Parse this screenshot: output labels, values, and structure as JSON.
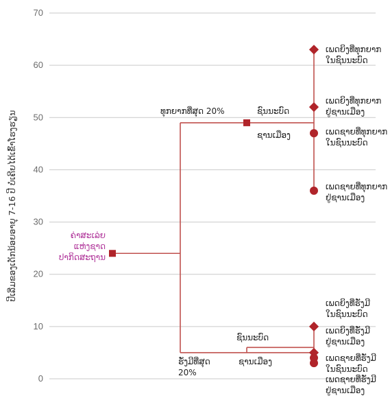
{
  "chart_data": {
    "type": "scatter",
    "title": "",
    "ylabel": "ປີເລີ່ມຂອງເດັກນ້ອຍອາຍຸ 7-16 ປີ ບໍ່ເຄີຍໄດ້ເຂົ້າໂຮງຮຽນ",
    "ylim": [
      0,
      70
    ],
    "yticks": [
      0,
      10,
      20,
      30,
      40,
      50,
      60,
      70
    ],
    "grid": true,
    "colors": {
      "line": "#c0504d",
      "marker": "#b0242a",
      "accent": "#b0359a",
      "grid": "#c9c9c9"
    },
    "root": {
      "label": [
        "ຄ່າສະເລ່ຍ",
        "ແຫ່ງຊາດ",
        "ປາກິດສະຖານ"
      ],
      "value": 24,
      "marker": "square"
    },
    "groups": [
      {
        "label": [
          "ທຸກຍາກທີ່ສຸດ 20%"
        ],
        "value": 49,
        "marker": "square",
        "children": [
          {
            "label": [
              "ຊົນນະບົດ"
            ],
            "value": 49,
            "marker": "square"
          },
          {
            "label": [
              "ຊານເມືອງ"
            ],
            "value": 49,
            "marker": "square"
          }
        ],
        "leaves": [
          {
            "label": [
              "ເພດຍິງທີ່ທຸກຍາກ",
              "ໃນຊົນນະບົດ"
            ],
            "value": 63,
            "marker": "diamond"
          },
          {
            "label": [
              "ເພດຍິງທີ່ທຸກຍາກ",
              "ຢູ່ຊານເມືອງ"
            ],
            "value": 52,
            "marker": "diamond"
          },
          {
            "label": [
              "ເພດຊາຍທີ່ທຸກຍາກ",
              "ໃນຊົນນະບົດ"
            ],
            "value": 47,
            "marker": "circle"
          },
          {
            "label": [
              "ເພດຊາຍທີ່ທຸກຍາກ",
              "ຢູ່ຊານເມືອງ"
            ],
            "value": 36,
            "marker": "circle"
          }
        ]
      },
      {
        "label": [
          "ຮັ່ງມີທີ່ສຸດ",
          "20%"
        ],
        "value": 5,
        "marker": "none",
        "children": [
          {
            "label": [
              "ຊົນນະບົດ"
            ],
            "value": 6,
            "marker": "none"
          },
          {
            "label": [
              "ຊານເມືອງ"
            ],
            "value": 5,
            "marker": "none"
          }
        ],
        "leaves": [
          {
            "label": [
              "ເພດຍິງທີ່ຮັ່ງມີ",
              "ໃນຊົນນະບົດ"
            ],
            "value": 10,
            "marker": "diamond"
          },
          {
            "label": [
              "ເພດຍິງທີ່ຮັ່ງມີ",
              "ຢູ່ຊານເມືອງ"
            ],
            "value": 5,
            "marker": "diamond"
          },
          {
            "label": [
              "ເພດຊາຍທີ່ຮັ່ງມີ",
              "ໃນຊົນນະບົດ"
            ],
            "value": 4,
            "marker": "circle"
          },
          {
            "label": [
              "ເພດຊາຍທີ່ຮັ່ງມີ",
              "ຢູ່ຊານເມືອງ"
            ],
            "value": 3,
            "marker": "circle"
          }
        ]
      }
    ]
  }
}
